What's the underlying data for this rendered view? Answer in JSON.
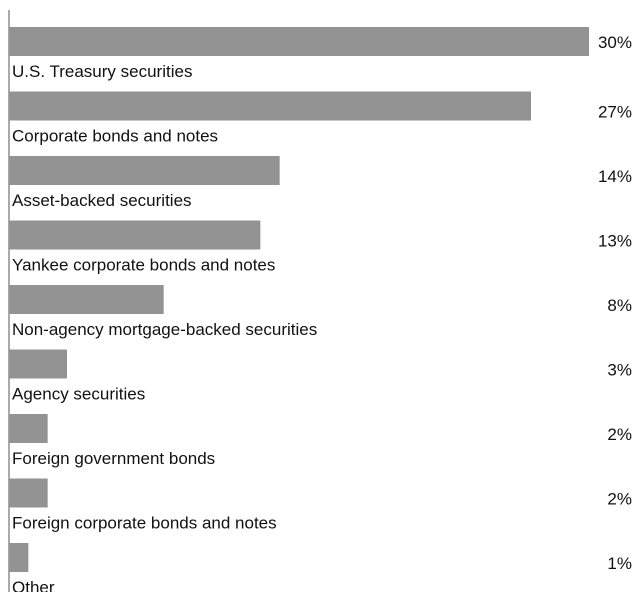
{
  "chart_data": {
    "type": "bar",
    "orientation": "horizontal",
    "categories": [
      "U.S. Treasury securities",
      "Corporate bonds and notes",
      "Asset-backed securities",
      "Yankee corporate bonds and notes",
      "Non-agency mortgage-backed securities",
      "Agency securities",
      "Foreign government bonds",
      "Foreign corporate bonds and notes",
      "Other"
    ],
    "values": [
      30,
      27,
      14,
      13,
      8,
      3,
      2,
      2,
      1
    ],
    "value_labels": [
      "30%",
      "27%",
      "14%",
      "13%",
      "8%",
      "3%",
      "2%",
      "2%",
      "1%"
    ],
    "unit": "%",
    "xlim": [
      0,
      30
    ],
    "grid": false,
    "legend": "none",
    "bar_color": "#939393",
    "axis_color": "#555555"
  }
}
